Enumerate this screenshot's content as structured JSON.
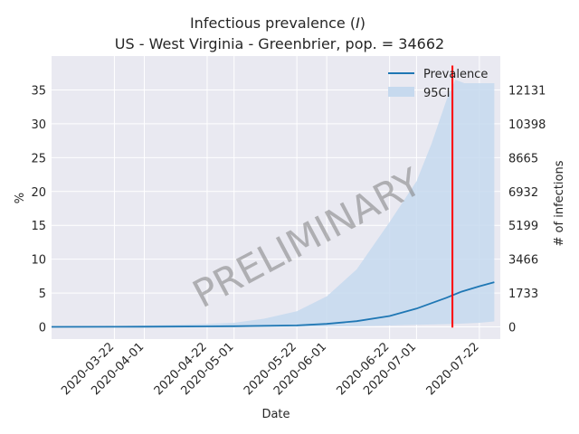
{
  "chart_data": {
    "type": "line",
    "title": {
      "prefix": "Infectious prevalence (",
      "italic": "I",
      "suffix": ")",
      "subtitle": "US - West Virginia - Greenbrier, pop. = 34662"
    },
    "xlabel": "Date",
    "ylabel_left": "%",
    "ylabel_right": "# of infections",
    "x_range": [
      "2020-03-01",
      "2020-07-29"
    ],
    "ylim": [
      -1.8,
      40
    ],
    "y_ticks_left": [
      0,
      5,
      10,
      15,
      20,
      25,
      30,
      35
    ],
    "y_ticks_right": [
      0,
      1733,
      3466,
      5199,
      6932,
      8665,
      10398,
      12131
    ],
    "y_ticks_right_pct": [
      0,
      5,
      10,
      15,
      20,
      25,
      30,
      35
    ],
    "x_ticks": [
      "2020-03-22",
      "2020-04-01",
      "2020-04-22",
      "2020-05-01",
      "2020-05-22",
      "2020-06-01",
      "2020-06-22",
      "2020-07-01",
      "2020-07-22"
    ],
    "vline_date": "2020-07-13",
    "watermark": "PRELIMINARY",
    "grid": true,
    "legend_position": "top-right",
    "colors": {
      "prevalence": "#1f77b4",
      "ci": "#c6d9ee",
      "vline": "#ff0000",
      "background": "#e9e9f1"
    },
    "series": [
      {
        "name": "Prevalence",
        "x": [
          "2020-03-01",
          "2020-03-22",
          "2020-04-01",
          "2020-04-22",
          "2020-05-01",
          "2020-05-22",
          "2020-06-01",
          "2020-06-11",
          "2020-06-22",
          "2020-07-01",
          "2020-07-06",
          "2020-07-11",
          "2020-07-16",
          "2020-07-22",
          "2020-07-27"
        ],
        "values": [
          0.0,
          0.02,
          0.03,
          0.07,
          0.1,
          0.22,
          0.45,
          0.85,
          1.6,
          2.7,
          3.5,
          4.3,
          5.2,
          6.0,
          6.6
        ]
      },
      {
        "name": "95CI",
        "x": [
          "2020-03-01",
          "2020-03-22",
          "2020-04-01",
          "2020-04-22",
          "2020-05-01",
          "2020-05-11",
          "2020-05-22",
          "2020-06-01",
          "2020-06-11",
          "2020-06-22",
          "2020-07-01",
          "2020-07-06",
          "2020-07-11",
          "2020-07-14",
          "2020-07-17",
          "2020-07-22",
          "2020-07-27"
        ],
        "upper": [
          0.0,
          0.1,
          0.2,
          0.45,
          0.6,
          1.2,
          2.3,
          4.5,
          8.5,
          15.5,
          21.5,
          27.0,
          33.5,
          36.5,
          36.0,
          36.0,
          36.0
        ],
        "lower": [
          0.0,
          0.0,
          0.0,
          0.0,
          0.0,
          0.0,
          0.0,
          0.05,
          0.1,
          0.2,
          0.3,
          0.35,
          0.4,
          0.45,
          0.5,
          0.6,
          0.8
        ]
      }
    ]
  }
}
